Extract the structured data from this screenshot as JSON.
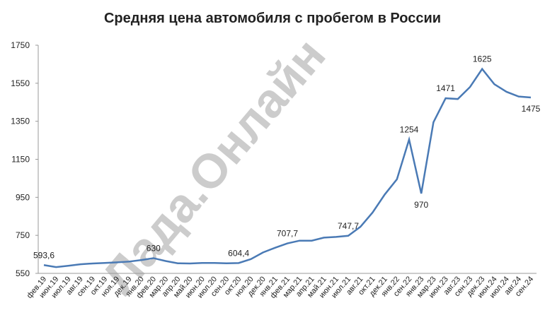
{
  "chart_data": {
    "type": "line",
    "title": "Средняя цена автомобиля с пробегом в России",
    "watermark": "Лада.Онлайн",
    "categories": [
      "фев.19",
      "июн.19",
      "июл.19",
      "авг.19",
      "сен.19",
      "окт.19",
      "ноя.19",
      "дек.19",
      "янв.20",
      "фев.20",
      "мар.20",
      "апр.20",
      "май.20",
      "июн.20",
      "июл.20",
      "сен.20",
      "окт.20",
      "ноя.20",
      "дек.20",
      "янв.21",
      "фев.21",
      "мар.21",
      "апр.21",
      "май.21",
      "июн.21",
      "июл.21",
      "авг.21",
      "окт.21",
      "дек.21",
      "янв.22",
      "сен.22",
      "янв.23",
      "мар.23",
      "июн.23",
      "авг.23",
      "сен.23",
      "дек.23",
      "июн.24",
      "июл.24",
      "авг.24",
      "сен.24"
    ],
    "series": [
      {
        "name": "Средняя цена",
        "color": "#4a7ab5",
        "values": [
          593.6,
          583,
          590,
          598,
          602,
          605,
          608,
          612,
          620,
          630,
          615,
          603,
          602,
          605,
          605,
          603,
          604.4,
          625,
          660,
          685,
          707.7,
          722,
          722,
          738,
          742,
          747.7,
          795,
          870,
          965,
          1045,
          1254,
          970,
          1345,
          1471,
          1467,
          1530,
          1625,
          1545,
          1505,
          1480,
          1475
        ],
        "value_labels": [
          "593,6",
          null,
          null,
          null,
          null,
          null,
          null,
          null,
          null,
          "630",
          null,
          null,
          null,
          null,
          null,
          null,
          "604,4",
          null,
          null,
          null,
          "707,7",
          null,
          null,
          null,
          null,
          "747,7",
          null,
          null,
          null,
          null,
          "1254",
          "970",
          null,
          "1471",
          null,
          null,
          "1625",
          null,
          null,
          null,
          "1475"
        ]
      }
    ],
    "ylim": [
      550,
      1750
    ],
    "yticks": [
      550,
      750,
      950,
      1150,
      1350,
      1550,
      1750
    ],
    "grid": false
  }
}
